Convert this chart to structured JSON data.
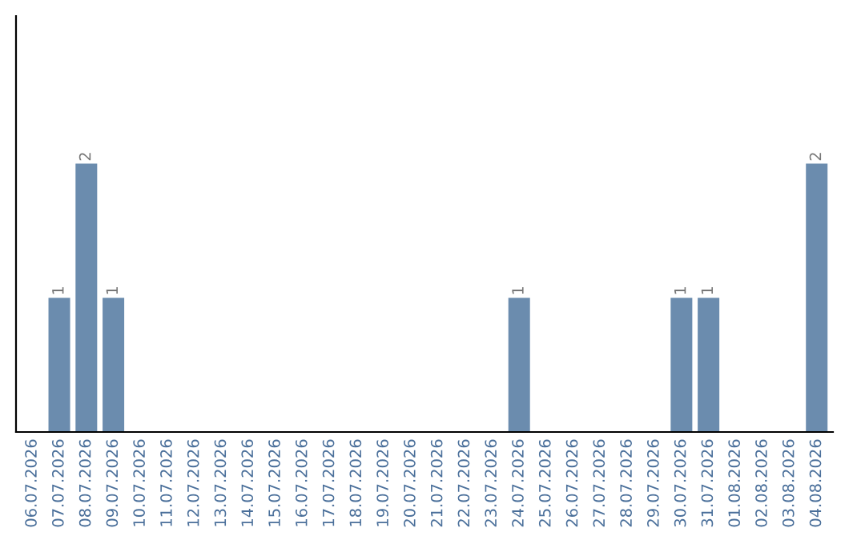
{
  "chart_data": {
    "type": "bar",
    "categories": [
      "06.07.2026",
      "07.07.2026",
      "08.07.2026",
      "09.07.2026",
      "10.07.2026",
      "11.07.2026",
      "12.07.2026",
      "13.07.2026",
      "14.07.2026",
      "15.07.2026",
      "16.07.2026",
      "17.07.2026",
      "18.07.2026",
      "19.07.2026",
      "20.07.2026",
      "21.07.2026",
      "22.07.2026",
      "23.07.2026",
      "24.07.2026",
      "25.07.2026",
      "26.07.2026",
      "27.07.2026",
      "28.07.2026",
      "29.07.2026",
      "30.07.2026",
      "31.07.2026",
      "01.08.2026",
      "02.08.2026",
      "03.08.2026",
      "04.08.2026"
    ],
    "values": [
      0,
      1,
      2,
      1,
      0,
      0,
      0,
      0,
      0,
      0,
      0,
      0,
      0,
      0,
      0,
      0,
      0,
      0,
      1,
      0,
      0,
      0,
      0,
      0,
      1,
      1,
      0,
      0,
      0,
      2
    ],
    "value_labels": [
      null,
      "1",
      "2",
      "1",
      null,
      null,
      null,
      null,
      null,
      null,
      null,
      null,
      null,
      null,
      null,
      null,
      null,
      null,
      "1",
      null,
      null,
      null,
      null,
      null,
      "1",
      "1",
      null,
      null,
      null,
      "2"
    ],
    "color": "#6b8cae",
    "ylim": [
      0,
      3.1
    ],
    "tick_labels": "x",
    "grid": false,
    "legend": false
  }
}
